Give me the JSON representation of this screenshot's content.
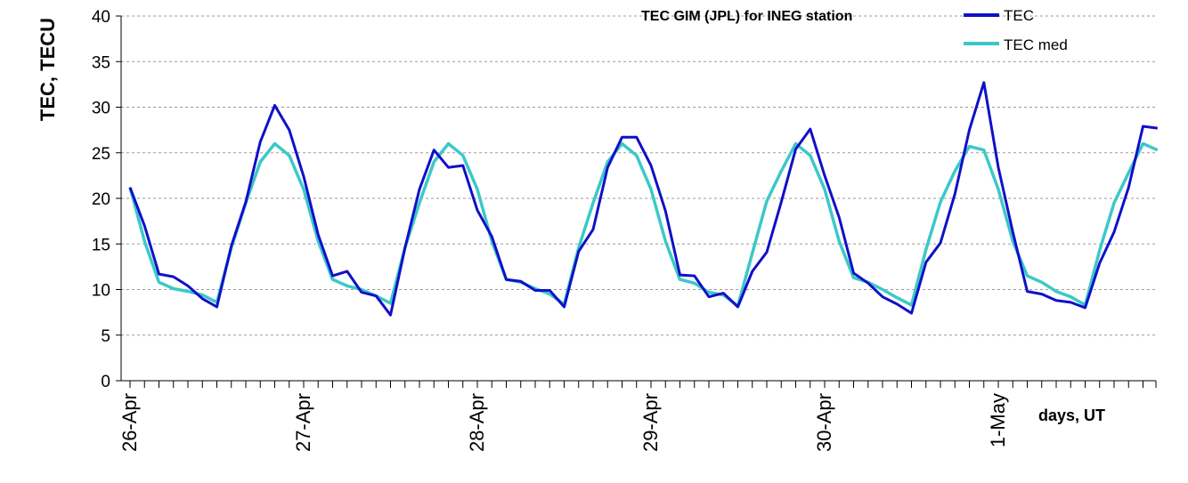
{
  "chart_data": {
    "type": "line",
    "title": "TEC GIM (JPL) for INEG station",
    "xlabel": "days, UT",
    "ylabel": "TEC, TECU",
    "ylim": [
      0,
      40
    ],
    "yticks": [
      "0",
      "5",
      "10",
      "15",
      "20",
      "25",
      "30",
      "35",
      "40"
    ],
    "x_tick_labels": [
      "26-Apr",
      "27-Apr",
      "28-Apr",
      "29-Apr",
      "30-Apr",
      "1-May"
    ],
    "x_step_hours": 2,
    "grid": "horizontal dashed",
    "legend_position": "top-right",
    "series": [
      {
        "name": "TEC",
        "color": "#1010c8",
        "values": [
          21.2,
          17.0,
          11.7,
          11.4,
          10.4,
          9.0,
          8.1,
          14.8,
          19.6,
          26.2,
          30.2,
          27.5,
          22.4,
          16.0,
          11.5,
          12.0,
          9.7,
          9.3,
          7.2,
          14.6,
          21.0,
          25.3,
          23.4,
          23.6,
          18.7,
          15.8,
          11.1,
          10.9,
          9.9,
          9.9,
          8.1,
          14.2,
          16.6,
          23.4,
          26.7,
          26.7,
          23.6,
          18.6,
          11.6,
          11.5,
          9.2,
          9.6,
          8.1,
          12.0,
          14.1,
          19.6,
          25.4,
          27.6,
          22.5,
          17.9,
          11.8,
          10.7,
          9.2,
          8.4,
          7.4,
          13.0,
          15.1,
          20.5,
          27.5,
          32.7,
          23.4,
          16.3,
          9.8,
          9.5,
          8.8,
          8.6,
          8.0,
          12.9,
          16.3,
          21.2,
          27.9,
          27.7
        ],
        "x_start_hours": 0
      },
      {
        "name": "TEC med",
        "color": "#3cc8c8",
        "values": [
          21.2,
          15.3,
          10.8,
          10.1,
          9.8,
          9.4,
          8.6,
          14.6,
          19.5,
          24.0,
          26.0,
          24.7,
          21.0,
          15.3,
          11.1,
          10.4,
          10.0,
          9.3,
          8.5,
          14.6,
          19.5,
          24.0,
          26.0,
          24.7,
          21.0,
          15.3,
          11.1,
          10.8,
          10.1,
          9.5,
          8.4,
          14.6,
          19.5,
          24.0,
          26.0,
          24.7,
          21.0,
          15.3,
          11.1,
          10.7,
          9.7,
          9.4,
          8.2,
          14.0,
          19.7,
          23.0,
          26.0,
          24.7,
          21.0,
          15.3,
          11.3,
          10.8,
          10.0,
          9.1,
          8.3,
          14.4,
          19.6,
          23.0,
          25.7,
          25.3,
          21.0,
          15.3,
          11.5,
          10.8,
          9.8,
          9.2,
          8.3,
          14.3,
          19.5,
          22.8,
          26.0,
          25.3
        ],
        "x_start_hours": 0
      }
    ]
  }
}
